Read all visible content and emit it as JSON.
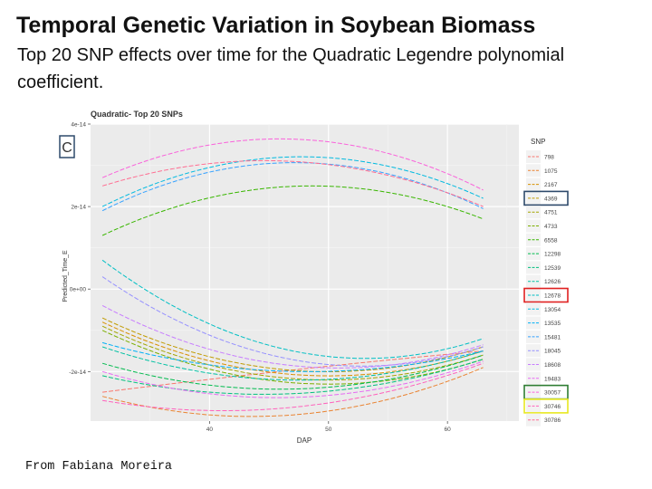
{
  "slide": {
    "title": "Temporal Genetic Variation in Soybean Biomass",
    "subtitle": "Top 20 SNP effects over time for the Quadratic Legendre polynomial coefficient.",
    "credit": "From Fabiana Moreira"
  },
  "chart_data": {
    "type": "line",
    "title": "Quadratic- Top 20 SNPs",
    "panel_label": "C",
    "xlabel": "DAP",
    "ylabel": "Predicted_Time_E",
    "xlim": [
      30,
      66
    ],
    "ylim": [
      -3.2e-14,
      4e-14
    ],
    "x_ticks": [
      {
        "v": 40,
        "label": "40"
      },
      {
        "v": 50,
        "label": "50"
      },
      {
        "v": 60,
        "label": "60"
      }
    ],
    "y_ticks": [
      {
        "v": 4e-14,
        "label": "4e-14"
      },
      {
        "v": 2e-14,
        "label": "2e-14"
      },
      {
        "v": 0,
        "label": "0e+00"
      },
      {
        "v": -2e-14,
        "label": "-2e-14"
      }
    ],
    "grid": true,
    "legend_title": "SNP",
    "legend_position": "right",
    "highlight_colors": {
      "4369": "#2e4a6b",
      "12678": "#e02020",
      "30057": "#2e7d32",
      "30746": "#e8e820"
    },
    "series": [
      {
        "name": "798",
        "color": "#F8766D",
        "x": [
          31,
          49,
          63
        ],
        "y": [
          -2.5e-14,
          -1.9e-14,
          -1.5e-14
        ]
      },
      {
        "name": "1075",
        "color": "#EA8331",
        "x": [
          31,
          47,
          63
        ],
        "y": [
          -2.6e-14,
          -3.05e-14,
          -1.9e-14
        ]
      },
      {
        "name": "2167",
        "color": "#D89000",
        "x": [
          31,
          49,
          63
        ],
        "y": [
          -8e-15,
          -2.1e-14,
          -1.5e-14
        ]
      },
      {
        "name": "4369",
        "color": "#C09B00",
        "x": [
          31,
          49,
          63
        ],
        "y": [
          -7e-15,
          -2e-14,
          -1.4e-14
        ]
      },
      {
        "name": "4751",
        "color": "#A3A500",
        "x": [
          31,
          49,
          63
        ],
        "y": [
          -9e-15,
          -2.2e-14,
          -1.6e-14
        ]
      },
      {
        "name": "4733",
        "color": "#7CAE00",
        "x": [
          31,
          49,
          63
        ],
        "y": [
          -1e-14,
          -2.3e-14,
          -1.7e-14
        ]
      },
      {
        "name": "6558",
        "color": "#39B600",
        "x": [
          31,
          49,
          63
        ],
        "y": [
          1.3e-14,
          2.5e-14,
          1.7e-14
        ]
      },
      {
        "name": "12298",
        "color": "#00BB4E",
        "x": [
          31,
          49,
          63
        ],
        "y": [
          -1.8e-14,
          -2.4e-14,
          -1.6e-14
        ]
      },
      {
        "name": "12539",
        "color": "#00BF7D",
        "x": [
          31,
          49,
          63
        ],
        "y": [
          -2.1e-14,
          -2.5e-14,
          -1.7e-14
        ]
      },
      {
        "name": "12626",
        "color": "#00C1A3",
        "x": [
          31,
          49,
          63
        ],
        "y": [
          -1.4e-14,
          -2.2e-14,
          -1.5e-14
        ]
      },
      {
        "name": "12678",
        "color": "#00BFC4",
        "x": [
          31,
          49,
          63
        ],
        "y": [
          7e-15,
          -1.6e-14,
          -1.2e-14
        ]
      },
      {
        "name": "13054",
        "color": "#00BAE0",
        "x": [
          31,
          49,
          63
        ],
        "y": [
          2e-14,
          3.2e-14,
          2.2e-14
        ]
      },
      {
        "name": "13535",
        "color": "#00B0F6",
        "x": [
          31,
          49,
          63
        ],
        "y": [
          -1.3e-14,
          -2e-14,
          -1.5e-14
        ]
      },
      {
        "name": "15481",
        "color": "#35A2FF",
        "x": [
          31,
          49,
          63
        ],
        "y": [
          1.9e-14,
          3.05e-14,
          1.95e-14
        ]
      },
      {
        "name": "18045",
        "color": "#9590FF",
        "x": [
          31,
          49,
          63
        ],
        "y": [
          3e-15,
          -1.8e-14,
          -1.4e-14
        ]
      },
      {
        "name": "18608",
        "color": "#C77CFF",
        "x": [
          31,
          49,
          63
        ],
        "y": [
          -4e-15,
          -1.9e-14,
          -1.35e-14
        ]
      },
      {
        "name": "19483",
        "color": "#E76BF3",
        "x": [
          31,
          49,
          63
        ],
        "y": [
          -2e-14,
          -2.6e-14,
          -1.75e-14
        ]
      },
      {
        "name": "30057",
        "color": "#FA62DB",
        "x": [
          31,
          49,
          63
        ],
        "y": [
          2.7e-14,
          3.6e-14,
          2.4e-14
        ]
      },
      {
        "name": "30746",
        "color": "#FF62BC",
        "x": [
          31,
          49,
          63
        ],
        "y": [
          -2.7e-14,
          -2.8e-14,
          -1.8e-14
        ]
      },
      {
        "name": "30786",
        "color": "#FF6C91",
        "x": [
          31,
          49,
          63
        ],
        "y": [
          2.5e-14,
          3.05e-14,
          2e-14
        ]
      }
    ]
  }
}
